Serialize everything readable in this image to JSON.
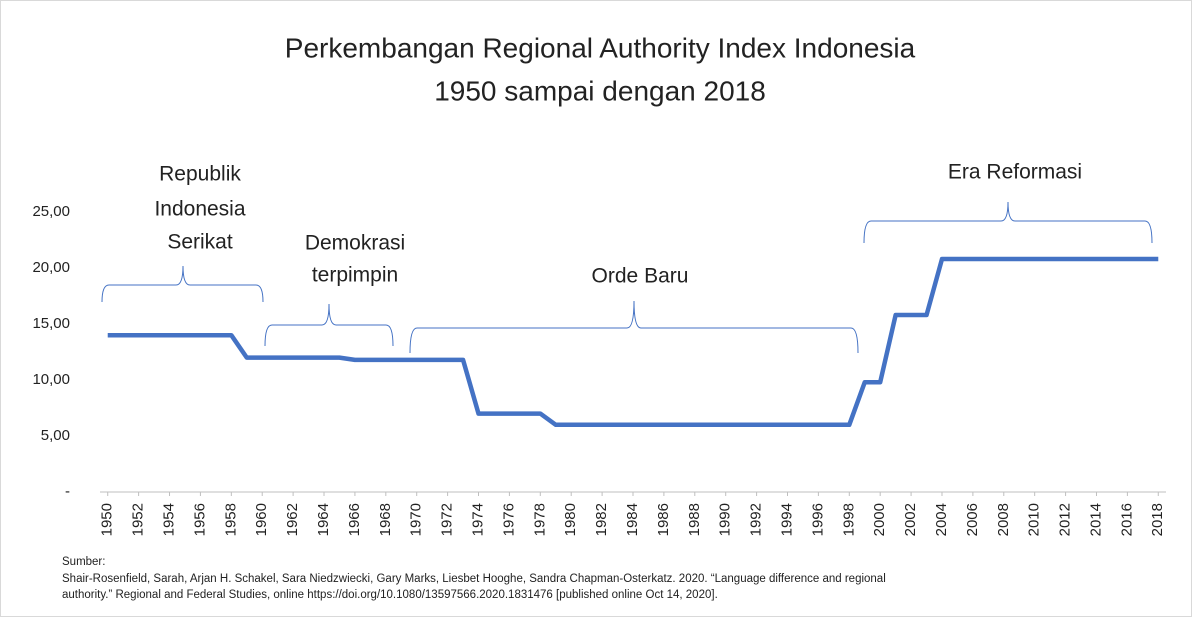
{
  "chart_data": {
    "type": "line",
    "title": "Perkembangan Regional Authority Index Indonesia",
    "subtitle": "1950 sampai dengan 2018",
    "x": [
      1950,
      1951,
      1952,
      1953,
      1954,
      1955,
      1956,
      1957,
      1958,
      1959,
      1960,
      1961,
      1962,
      1963,
      1964,
      1965,
      1966,
      1967,
      1968,
      1969,
      1970,
      1971,
      1972,
      1973,
      1974,
      1975,
      1976,
      1977,
      1978,
      1979,
      1980,
      1981,
      1982,
      1983,
      1984,
      1985,
      1986,
      1987,
      1988,
      1989,
      1990,
      1991,
      1992,
      1993,
      1994,
      1995,
      1996,
      1997,
      1998,
      1999,
      2000,
      2001,
      2002,
      2003,
      2004,
      2005,
      2006,
      2007,
      2008,
      2009,
      2010,
      2011,
      2012,
      2013,
      2014,
      2015,
      2016,
      2017,
      2018
    ],
    "values": [
      14,
      14,
      14,
      14,
      14,
      14,
      14,
      14,
      14,
      12,
      12,
      12,
      12,
      12,
      12,
      12,
      11.8,
      11.8,
      11.8,
      11.8,
      11.8,
      11.8,
      11.8,
      11.8,
      7,
      7,
      7,
      7,
      7,
      6,
      6,
      6,
      6,
      6,
      6,
      6,
      6,
      6,
      6,
      6,
      6,
      6,
      6,
      6,
      6,
      6,
      6,
      6,
      6,
      9.8,
      9.8,
      15.8,
      15.8,
      15.8,
      20.8,
      20.8,
      20.8,
      20.8,
      20.8,
      20.8,
      20.8,
      20.8,
      20.8,
      20.8,
      20.8,
      20.8,
      20.8,
      20.8,
      20.8
    ],
    "color": "#4472c4",
    "xlim": [
      1949.5,
      2018.5
    ],
    "xticks": [
      1950,
      1952,
      1954,
      1956,
      1958,
      1960,
      1962,
      1964,
      1966,
      1968,
      1970,
      1972,
      1974,
      1976,
      1978,
      1980,
      1982,
      1984,
      1986,
      1988,
      1990,
      1992,
      1994,
      1996,
      1998,
      2000,
      2002,
      2004,
      2006,
      2008,
      2010,
      2012,
      2014,
      2016,
      2018
    ],
    "ylim": [
      0,
      25
    ],
    "yticks": [
      {
        "value": 0,
        "label": "-"
      },
      {
        "value": 5,
        "label": "5,00"
      },
      {
        "value": 10,
        "label": "10,00"
      },
      {
        "value": 15,
        "label": "15,00"
      },
      {
        "value": 20,
        "label": "20,00"
      },
      {
        "value": 25,
        "label": "25,00"
      }
    ],
    "grid": false,
    "annotations": [
      {
        "lines": [
          "Republik",
          "Indonesia",
          "Serikat"
        ]
      },
      {
        "lines": [
          "Demokrasi",
          "terpimpin"
        ]
      },
      {
        "lines": [
          "Orde Baru"
        ]
      },
      {
        "lines": [
          "Era Reformasi"
        ]
      }
    ],
    "source_label": "Sumber:",
    "source_lines": [
      "Shair-Rosenfield, Sarah, Arjan H. Schakel, Sara Niedzwiecki, Gary Marks, Liesbet Hooghe, Sandra Chapman-Osterkatz. 2020. “Language difference and regional",
      "authority.” Regional and Federal Studies, online https://doi.org/10.1080/13597566.2020.1831476 [published online Oct 14, 2020]."
    ]
  }
}
